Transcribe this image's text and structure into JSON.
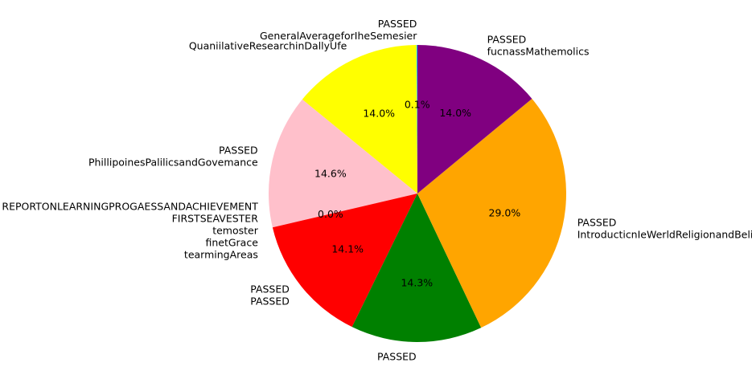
{
  "chart_data": {
    "type": "pie",
    "title": "",
    "start_angle_deg": 90,
    "direction": "counterclockwise",
    "slices": [
      {
        "value": 0.1,
        "pct_label": "0.1%",
        "color": "#00bfff",
        "label_lines": [
          "PASSED",
          "GeneralAverageforIheSemesier"
        ]
      },
      {
        "value": 14.0,
        "pct_label": "14.0%",
        "color": "#ffff00",
        "label_lines": [
          "QuaniilativeResearchinDallyUfe"
        ]
      },
      {
        "value": 14.6,
        "pct_label": "14.6%",
        "color": "#ffc0cb",
        "label_lines": [
          "PASSED",
          "PhillipoinesPalilicsandGovemance"
        ]
      },
      {
        "value": 0.0,
        "pct_label": "0.0%",
        "color": "#ffffff",
        "label_lines": [
          "REPORTONLEARNINGPROGAESSANDACHIEVEMENT",
          "FIRSTSEAVESTER",
          "temoster",
          "finetGrace",
          "tearmingAreas"
        ]
      },
      {
        "value": 14.1,
        "pct_label": "14.1%",
        "color": "#ff0000",
        "label_lines": [
          "PASSED",
          "PASSED"
        ]
      },
      {
        "value": 14.3,
        "pct_label": "14.3%",
        "color": "#008000",
        "label_lines": [
          "PASSED"
        ]
      },
      {
        "value": 29.0,
        "pct_label": "29.0%",
        "color": "#ffa500",
        "label_lines": [
          "PASSED",
          "IntroducticnIeWerldReligionandBeliatsSystems"
        ]
      },
      {
        "value": 14.0,
        "pct_label": "14.0%",
        "color": "#800080",
        "label_lines": [
          "PASSED",
          "fucnassMathemolics"
        ]
      }
    ]
  }
}
